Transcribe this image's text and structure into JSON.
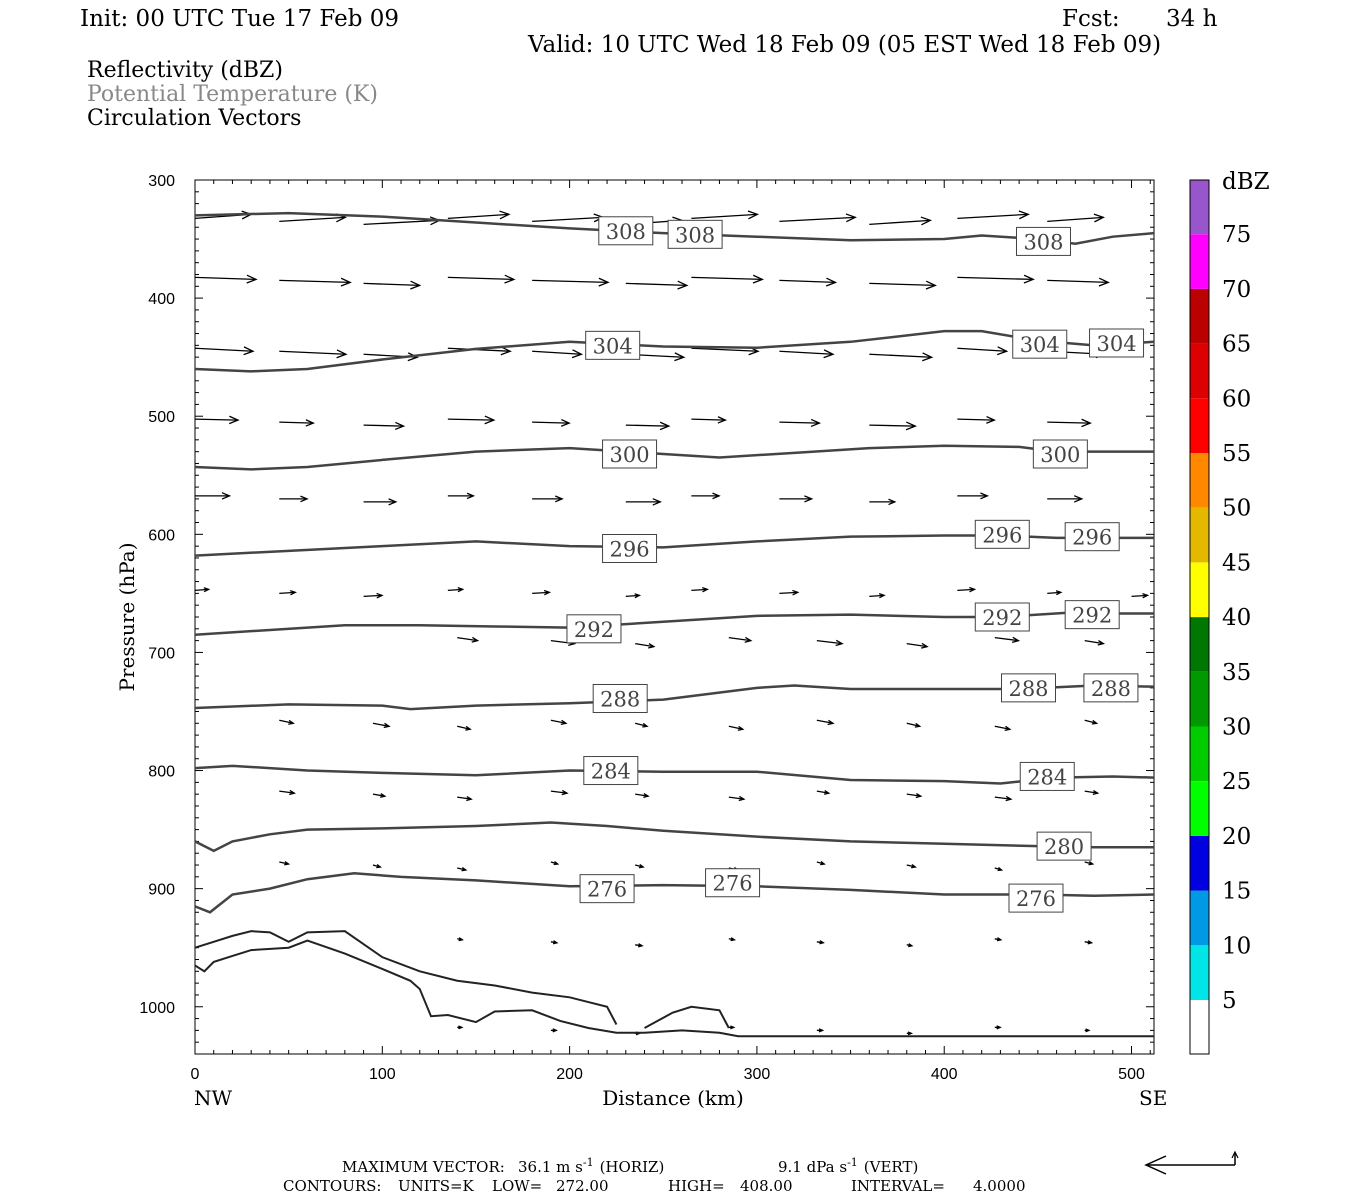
{
  "header": {
    "init": "Init: 00 UTC Tue 17 Feb 09",
    "fcst_label": "Fcst:",
    "fcst_value": "34 h",
    "valid": "Valid: 10 UTC Wed 18 Feb 09 (05 EST Wed 18 Feb 09)"
  },
  "legend": {
    "items": [
      {
        "label": "Reflectivity (dBZ)",
        "color": "#000000"
      },
      {
        "label": "Potential Temperature (K)",
        "color": "#888888"
      },
      {
        "label": "Circulation Vectors",
        "color": "#000000"
      }
    ]
  },
  "colorbar": {
    "title": "dBZ",
    "levels": [
      "5",
      "10",
      "15",
      "20",
      "25",
      "30",
      "35",
      "40",
      "45",
      "50",
      "55",
      "60",
      "65",
      "70",
      "75"
    ],
    "colors": [
      "#00e5e5",
      "#0099e5",
      "#0000e0",
      "#00ff00",
      "#00cc00",
      "#009900",
      "#007700",
      "#ffff00",
      "#e5b800",
      "#ff8800",
      "#ff0000",
      "#dd0000",
      "#bb0000",
      "#ff00ff",
      "#9955cc"
    ]
  },
  "chart_data": {
    "type": "cross-section",
    "xlabel": "Distance (km)",
    "ylabel": "Pressure (hPa)",
    "xlim": [
      0,
      512
    ],
    "ylim": [
      300,
      1040
    ],
    "y_scale": "linear, inverted",
    "x_ticks": [
      "0",
      "100",
      "200",
      "300",
      "400",
      "500"
    ],
    "y_ticks": [
      "300",
      "400",
      "500",
      "600",
      "700",
      "800",
      "900",
      "1000"
    ],
    "x_endpoint_labels": {
      "left": "NW",
      "right": "SE"
    },
    "theta_contours": [
      {
        "value": 308,
        "points": [
          [
            0,
            330
          ],
          [
            50,
            328
          ],
          [
            100,
            331
          ],
          [
            150,
            336
          ],
          [
            200,
            341
          ],
          [
            250,
            345
          ],
          [
            300,
            348
          ],
          [
            350,
            351
          ],
          [
            400,
            350
          ],
          [
            420,
            347
          ],
          [
            450,
            350
          ],
          [
            470,
            354
          ],
          [
            490,
            348
          ],
          [
            512,
            345
          ]
        ],
        "labels": [
          [
            230,
            343
          ],
          [
            267,
            346
          ],
          [
            453,
            352
          ]
        ]
      },
      {
        "value": 304,
        "points": [
          [
            0,
            460
          ],
          [
            30,
            462
          ],
          [
            60,
            460
          ],
          [
            100,
            452
          ],
          [
            150,
            443
          ],
          [
            200,
            437
          ],
          [
            250,
            441
          ],
          [
            300,
            442
          ],
          [
            350,
            437
          ],
          [
            400,
            428
          ],
          [
            420,
            428
          ],
          [
            450,
            436
          ],
          [
            480,
            440
          ],
          [
            512,
            437
          ]
        ],
        "labels": [
          [
            223,
            440
          ],
          [
            451,
            439
          ],
          [
            492,
            438
          ]
        ]
      },
      {
        "value": 300,
        "points": [
          [
            0,
            543
          ],
          [
            30,
            545
          ],
          [
            60,
            543
          ],
          [
            100,
            537
          ],
          [
            150,
            530
          ],
          [
            200,
            527
          ],
          [
            250,
            532
          ],
          [
            280,
            535
          ],
          [
            320,
            531
          ],
          [
            360,
            527
          ],
          [
            400,
            525
          ],
          [
            440,
            526
          ],
          [
            460,
            530
          ],
          [
            490,
            530
          ],
          [
            512,
            530
          ]
        ],
        "labels": [
          [
            232,
            532
          ],
          [
            462,
            532
          ]
        ]
      },
      {
        "value": 296,
        "points": [
          [
            0,
            618
          ],
          [
            50,
            614
          ],
          [
            100,
            610
          ],
          [
            150,
            606
          ],
          [
            200,
            610
          ],
          [
            250,
            611
          ],
          [
            300,
            606
          ],
          [
            350,
            602
          ],
          [
            400,
            601
          ],
          [
            430,
            601
          ],
          [
            460,
            603
          ],
          [
            490,
            603
          ],
          [
            512,
            603
          ]
        ],
        "labels": [
          [
            232,
            612
          ],
          [
            431,
            600
          ],
          [
            479,
            602
          ]
        ]
      },
      {
        "value": 292,
        "points": [
          [
            0,
            685
          ],
          [
            40,
            681
          ],
          [
            80,
            677
          ],
          [
            120,
            677
          ],
          [
            160,
            678
          ],
          [
            200,
            679
          ],
          [
            250,
            674
          ],
          [
            300,
            669
          ],
          [
            350,
            668
          ],
          [
            400,
            670
          ],
          [
            430,
            670
          ],
          [
            470,
            666
          ],
          [
            490,
            667
          ],
          [
            512,
            667
          ]
        ],
        "labels": [
          [
            213,
            680
          ],
          [
            431,
            670
          ],
          [
            479,
            668
          ]
        ]
      },
      {
        "value": 288,
        "points": [
          [
            0,
            747
          ],
          [
            50,
            744
          ],
          [
            100,
            745
          ],
          [
            115,
            748
          ],
          [
            150,
            745
          ],
          [
            200,
            743
          ],
          [
            250,
            740
          ],
          [
            300,
            730
          ],
          [
            320,
            728
          ],
          [
            350,
            731
          ],
          [
            400,
            731
          ],
          [
            440,
            731
          ],
          [
            480,
            728
          ],
          [
            512,
            729
          ]
        ],
        "labels": [
          [
            227,
            739
          ],
          [
            445,
            730
          ],
          [
            489,
            730
          ]
        ]
      },
      {
        "value": 284,
        "points": [
          [
            0,
            798
          ],
          [
            20,
            796
          ],
          [
            60,
            800
          ],
          [
            100,
            802
          ],
          [
            150,
            804
          ],
          [
            200,
            800
          ],
          [
            250,
            801
          ],
          [
            300,
            801
          ],
          [
            350,
            808
          ],
          [
            400,
            809
          ],
          [
            430,
            811
          ],
          [
            460,
            806
          ],
          [
            490,
            805
          ],
          [
            512,
            806
          ]
        ],
        "labels": [
          [
            222,
            800
          ],
          [
            455,
            805
          ]
        ]
      },
      {
        "value": 280,
        "points": [
          [
            0,
            860
          ],
          [
            10,
            868
          ],
          [
            20,
            860
          ],
          [
            40,
            854
          ],
          [
            60,
            850
          ],
          [
            100,
            849
          ],
          [
            150,
            847
          ],
          [
            190,
            844
          ],
          [
            220,
            847
          ],
          [
            250,
            851
          ],
          [
            300,
            856
          ],
          [
            350,
            860
          ],
          [
            400,
            862
          ],
          [
            450,
            864
          ],
          [
            480,
            865
          ],
          [
            512,
            865
          ]
        ],
        "labels": [
          [
            464,
            864
          ]
        ]
      },
      {
        "value": 276,
        "points": [
          [
            0,
            915
          ],
          [
            8,
            920
          ],
          [
            20,
            905
          ],
          [
            40,
            900
          ],
          [
            60,
            892
          ],
          [
            85,
            887
          ],
          [
            110,
            890
          ],
          [
            150,
            893
          ],
          [
            200,
            898
          ],
          [
            250,
            897
          ],
          [
            300,
            898
          ],
          [
            350,
            901
          ],
          [
            400,
            905
          ],
          [
            450,
            905
          ],
          [
            480,
            906
          ],
          [
            512,
            905
          ]
        ],
        "labels": [
          [
            220,
            900
          ],
          [
            287,
            895
          ],
          [
            449,
            908
          ]
        ]
      }
    ],
    "terrain_contours": [
      [
        [
          0,
          950
        ],
        [
          10,
          945
        ],
        [
          20,
          940
        ],
        [
          30,
          936
        ],
        [
          40,
          937
        ],
        [
          50,
          945
        ],
        [
          60,
          937
        ],
        [
          80,
          936
        ],
        [
          100,
          958
        ],
        [
          120,
          970
        ],
        [
          140,
          978
        ],
        [
          160,
          982
        ],
        [
          180,
          988
        ],
        [
          200,
          992
        ],
        [
          210,
          996
        ],
        [
          220,
          1000
        ],
        [
          225,
          1015
        ]
      ],
      [
        [
          0,
          965
        ],
        [
          5,
          970
        ],
        [
          10,
          962
        ],
        [
          20,
          957
        ],
        [
          30,
          952
        ],
        [
          50,
          950
        ],
        [
          60,
          944
        ],
        [
          80,
          955
        ],
        [
          100,
          968
        ],
        [
          115,
          978
        ],
        [
          120,
          985
        ],
        [
          126,
          1008
        ],
        [
          135,
          1007
        ],
        [
          150,
          1013
        ],
        [
          160,
          1004
        ],
        [
          180,
          1003
        ],
        [
          195,
          1012
        ],
        [
          210,
          1018
        ],
        [
          225,
          1022
        ],
        [
          240,
          1022
        ],
        [
          260,
          1020
        ],
        [
          280,
          1022
        ],
        [
          290,
          1025
        ],
        [
          350,
          1025
        ],
        [
          400,
          1025
        ],
        [
          450,
          1025
        ],
        [
          512,
          1025
        ]
      ],
      [
        [
          240,
          1018
        ],
        [
          255,
          1005
        ],
        [
          265,
          1000
        ],
        [
          280,
          1003
        ],
        [
          285,
          1018
        ]
      ]
    ],
    "max_vector": {
      "horiz": "36.1",
      "horiz_units": "m s",
      "vert": "9.1",
      "vert_units": "dPa s"
    },
    "contour_info": {
      "units": "K",
      "low": "272.00",
      "high": "408.00",
      "interval": "4.0000"
    }
  },
  "footer": {
    "max_vector_label": "MAXIMUM VECTOR:",
    "horiz_value": "36.1 m s",
    "horiz_sup": "-1",
    "horiz_tag": "(HORIZ)",
    "vert_value": "9.1 dPa s",
    "vert_sup": "-1",
    "vert_tag": "(VERT)",
    "contours_label": "CONTOURS:",
    "units_text": "UNITS=K",
    "low_text": "LOW=",
    "low_value": "272.00",
    "high_text": "HIGH=",
    "high_value": "408.00",
    "interval_text": "INTERVAL=",
    "interval_value": "4.0000"
  }
}
